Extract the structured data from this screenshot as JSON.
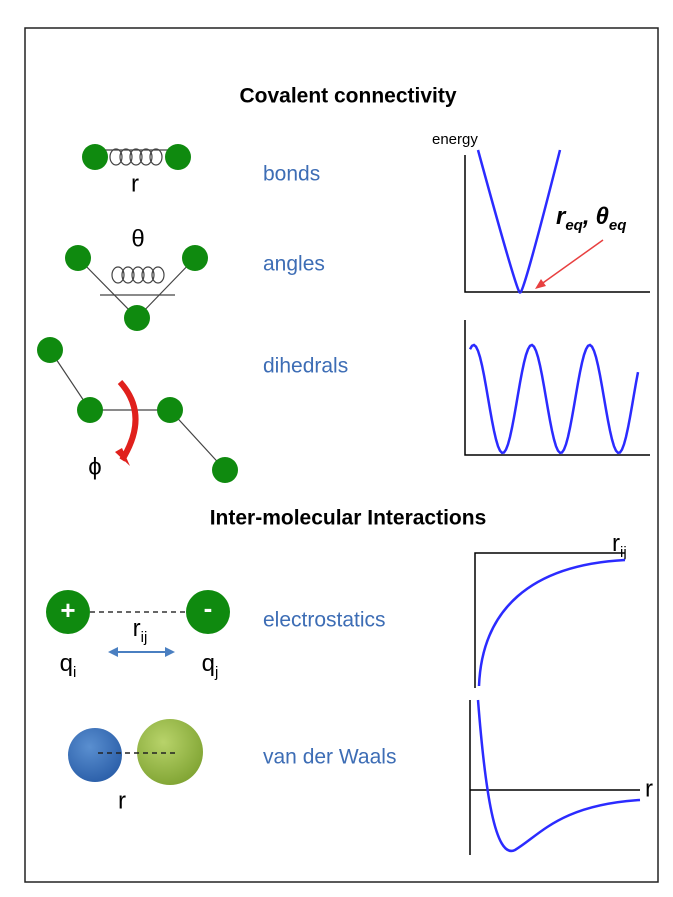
{
  "titles": [
    "Covalent connectivity",
    "Inter-molecular Interactions"
  ],
  "interactions": [
    "bonds",
    "angles",
    "dihedrals",
    "electrostatics",
    "van der Waals"
  ],
  "symbols": {
    "bond_r": "r",
    "angle": "θ",
    "dihedral": "ϕ",
    "charge_plus": "+",
    "charge_minus": "-",
    "qi": {
      "base": "q",
      "sub": "i"
    },
    "qj": {
      "base": "q",
      "sub": "j"
    },
    "rij": {
      "base": "r",
      "sub": "ij"
    },
    "vdw_r": "r"
  },
  "plots": {
    "energy_axis": "energy",
    "r_eq": {
      "base": "r",
      "sub": "eq"
    },
    "separator": ",",
    "theta_eq": {
      "base": "θ",
      "sub": "eq"
    },
    "rij_axis": {
      "base": "r",
      "sub": "ij"
    },
    "r_axis": "r"
  }
}
